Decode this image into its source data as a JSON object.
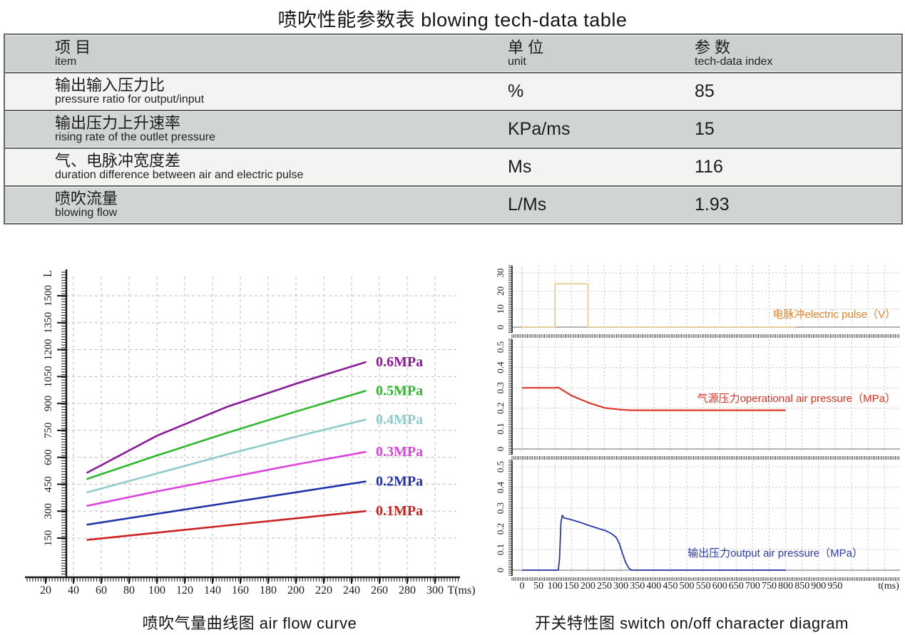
{
  "title": "喷吹性能参数表  blowing tech-data table",
  "table": {
    "header": {
      "col1_cn": "项  目",
      "col1_en": "item",
      "col2_cn": "单  位",
      "col2_en": "unit",
      "col3_cn": "参  数",
      "col3_en": "tech-data index"
    },
    "rows": [
      {
        "cn": "输出输入压力比",
        "en": "pressure ratio for output/input",
        "unit": "%",
        "value": "85"
      },
      {
        "cn": "输出压力上升速率",
        "en": "rising rate of the outlet pressure",
        "unit": "KPa/ms",
        "value": "15"
      },
      {
        "cn": "气、电脉冲宽度差",
        "en": "duration difference between air and electric pulse",
        "unit": "Ms",
        "value": "116"
      },
      {
        "cn": "喷吹流量",
        "en": "blowing flow",
        "unit": "L/Ms",
        "value": "1.93"
      }
    ]
  },
  "captions": {
    "left": "喷吹气量曲线图  air flow curve",
    "right": "开关特性图  switch on/off character diagram"
  },
  "chart_data": [
    {
      "id": "air_flow_curve",
      "type": "line",
      "title": "喷吹气量曲线图 air flow curve",
      "xlabel": "T(ms)",
      "ylabel": "L",
      "xlim": [
        0,
        320
      ],
      "ylim": [
        0,
        1640
      ],
      "grid": true,
      "x_ticks": [
        20,
        40,
        60,
        80,
        100,
        120,
        140,
        160,
        180,
        200,
        220,
        240,
        260,
        280,
        300
      ],
      "y_ticks": [
        150,
        300,
        450,
        600,
        750,
        900,
        1050,
        1200,
        1350,
        1500
      ],
      "x": [
        50,
        100,
        150,
        200,
        250
      ],
      "series": [
        {
          "name": "0.1MPa",
          "color": "#cc2222",
          "values": [
            140,
            180,
            220,
            260,
            300
          ]
        },
        {
          "name": "0.2MPa",
          "color": "#2233aa",
          "values": [
            225,
            285,
            345,
            405,
            465
          ]
        },
        {
          "name": "0.3MPa",
          "color": "#dd44dd",
          "values": [
            330,
            410,
            485,
            560,
            630
          ]
        },
        {
          "name": "0.4MPa",
          "color": "#8ecccc",
          "values": [
            405,
            510,
            615,
            715,
            810
          ]
        },
        {
          "name": "0.5MPa",
          "color": "#2eb82e",
          "values": [
            480,
            610,
            735,
            855,
            970
          ]
        },
        {
          "name": "0.6MPa",
          "color": "#8a1a9a",
          "values": [
            515,
            720,
            880,
            1010,
            1130
          ]
        }
      ],
      "legend_position": "right-of-curves"
    },
    {
      "id": "switch_on_off_character",
      "type": "line",
      "title": "开关特性图 switch on/off character diagram",
      "xlabel": "t(ms)",
      "xlim": [
        0,
        1150
      ],
      "grid": true,
      "x_ticks": [
        0,
        50,
        100,
        150,
        200,
        250,
        300,
        350,
        400,
        450,
        500,
        550,
        600,
        650,
        700,
        750,
        800,
        850,
        900,
        950
      ],
      "panels": [
        {
          "label": "电脉冲electric pulse（V）",
          "label_color": "#e0832a",
          "line_color": "#e8cd96",
          "y_ticks": [
            0,
            10,
            20,
            30
          ],
          "ylim": [
            0,
            34
          ],
          "points": [
            [
              0,
              0
            ],
            [
              100,
              0
            ],
            [
              100,
              24
            ],
            [
              200,
              24
            ],
            [
              200,
              0
            ],
            [
              830,
              0
            ]
          ]
        },
        {
          "label": "气源压力operational air pressure（MPa）",
          "label_color": "#e03222",
          "line_color": "#dd3a28",
          "y_ticks": [
            0,
            0.1,
            0.2,
            0.3,
            0.4,
            0.5
          ],
          "ylim": [
            0,
            0.54
          ],
          "points": [
            [
              0,
              0.3
            ],
            [
              100,
              0.3
            ],
            [
              110,
              0.302
            ],
            [
              150,
              0.262
            ],
            [
              200,
              0.228
            ],
            [
              250,
              0.202
            ],
            [
              300,
              0.193
            ],
            [
              330,
              0.19
            ],
            [
              800,
              0.19
            ]
          ]
        },
        {
          "label": "输出压力output air pressure（MPa）",
          "label_color": "#2a3ab0",
          "line_color": "#2a3aa8",
          "y_ticks": [
            0,
            0.1,
            0.2,
            0.3,
            0.4,
            0.5
          ],
          "ylim": [
            0,
            0.54
          ],
          "points": [
            [
              0,
              0
            ],
            [
              110,
              0
            ],
            [
              114,
              0.06
            ],
            [
              118,
              0.23
            ],
            [
              122,
              0.265
            ],
            [
              128,
              0.252
            ],
            [
              145,
              0.246
            ],
            [
              175,
              0.232
            ],
            [
              205,
              0.215
            ],
            [
              235,
              0.2
            ],
            [
              255,
              0.19
            ],
            [
              270,
              0.178
            ],
            [
              285,
              0.16
            ],
            [
              295,
              0.13
            ],
            [
              305,
              0.08
            ],
            [
              315,
              0.035
            ],
            [
              325,
              0.008
            ],
            [
              333,
              0
            ],
            [
              800,
              0
            ]
          ]
        }
      ]
    }
  ]
}
